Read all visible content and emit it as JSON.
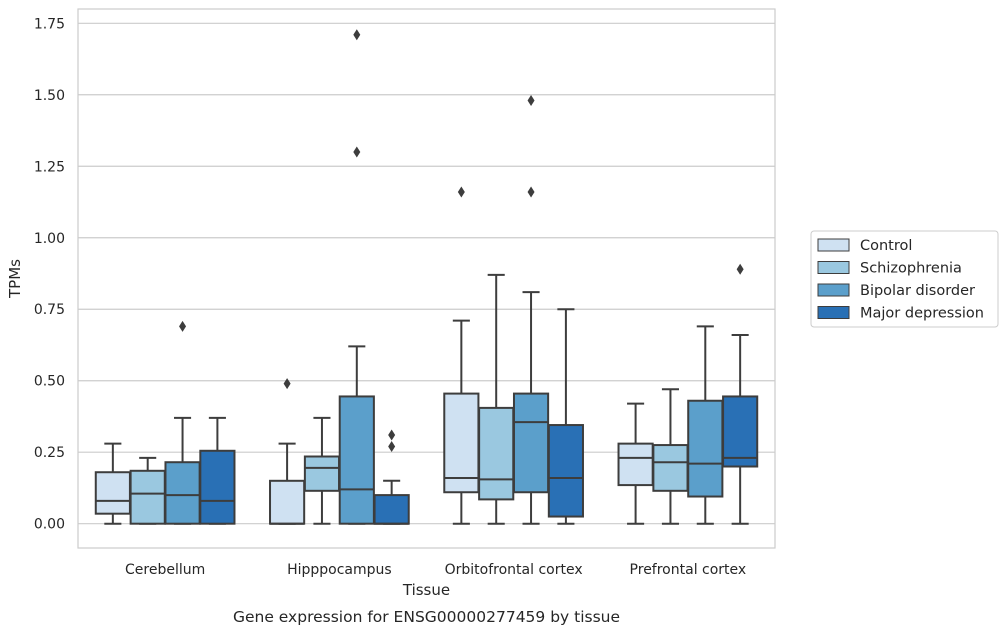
{
  "chart_data": {
    "type": "box",
    "xlabel": "Tissue",
    "ylabel": "TPMs",
    "caption": "Gene expression for ENSG00000277459 by tissue",
    "ylim": [
      -0.085,
      1.8
    ],
    "yticks": [
      "0.00",
      "0.25",
      "0.50",
      "0.75",
      "1.00",
      "1.25",
      "1.50",
      "1.75"
    ],
    "grid": "horizontal",
    "legend_position": "right",
    "categories": [
      "Cerebellum",
      "Hipppocampus",
      "Orbitofrontal cortex",
      "Prefrontal cortex"
    ],
    "series": [
      {
        "name": "Control",
        "color": "#cfe1f2",
        "boxes": [
          {
            "whisker_low": 0.0,
            "q1": 0.035,
            "median": 0.08,
            "q3": 0.18,
            "whisker_high": 0.28,
            "outliers": []
          },
          {
            "whisker_low": 0.0,
            "q1": 0.0,
            "median": 0.0,
            "q3": 0.15,
            "whisker_high": 0.28,
            "outliers": [
              0.49
            ]
          },
          {
            "whisker_low": 0.0,
            "q1": 0.11,
            "median": 0.16,
            "q3": 0.455,
            "whisker_high": 0.71,
            "outliers": [
              1.16
            ]
          },
          {
            "whisker_low": 0.0,
            "q1": 0.135,
            "median": 0.23,
            "q3": 0.28,
            "whisker_high": 0.42,
            "outliers": []
          }
        ]
      },
      {
        "name": "Schizophrenia",
        "color": "#9ac8e0",
        "boxes": [
          {
            "whisker_low": 0.0,
            "q1": 0.0,
            "median": 0.105,
            "q3": 0.185,
            "whisker_high": 0.23,
            "outliers": []
          },
          {
            "whisker_low": 0.0,
            "q1": 0.115,
            "median": 0.195,
            "q3": 0.235,
            "whisker_high": 0.37,
            "outliers": []
          },
          {
            "whisker_low": 0.0,
            "q1": 0.085,
            "median": 0.155,
            "q3": 0.405,
            "whisker_high": 0.87,
            "outliers": []
          },
          {
            "whisker_low": 0.0,
            "q1": 0.115,
            "median": 0.215,
            "q3": 0.275,
            "whisker_high": 0.47,
            "outliers": []
          }
        ]
      },
      {
        "name": "Bipolar disorder",
        "color": "#5b9fcb",
        "boxes": [
          {
            "whisker_low": 0.0,
            "q1": 0.0,
            "median": 0.1,
            "q3": 0.215,
            "whisker_high": 0.37,
            "outliers": [
              0.69
            ]
          },
          {
            "whisker_low": 0.0,
            "q1": 0.0,
            "median": 0.12,
            "q3": 0.445,
            "whisker_high": 0.62,
            "outliers": [
              1.3,
              1.71
            ]
          },
          {
            "whisker_low": 0.0,
            "q1": 0.11,
            "median": 0.355,
            "q3": 0.455,
            "whisker_high": 0.81,
            "outliers": [
              1.16,
              1.48
            ]
          },
          {
            "whisker_low": 0.0,
            "q1": 0.095,
            "median": 0.21,
            "q3": 0.43,
            "whisker_high": 0.69,
            "outliers": []
          }
        ]
      },
      {
        "name": "Major depression",
        "color": "#2970b5",
        "boxes": [
          {
            "whisker_low": 0.0,
            "q1": 0.0,
            "median": 0.08,
            "q3": 0.255,
            "whisker_high": 0.37,
            "outliers": []
          },
          {
            "whisker_low": 0.0,
            "q1": 0.0,
            "median": 0.0,
            "q3": 0.1,
            "whisker_high": 0.15,
            "outliers": [
              0.27,
              0.31
            ]
          },
          {
            "whisker_low": 0.0,
            "q1": 0.025,
            "median": 0.16,
            "q3": 0.345,
            "whisker_high": 0.75,
            "outliers": []
          },
          {
            "whisker_low": 0.0,
            "q1": 0.2,
            "median": 0.23,
            "q3": 0.445,
            "whisker_high": 0.66,
            "outliers": [
              0.89
            ]
          }
        ]
      }
    ]
  }
}
